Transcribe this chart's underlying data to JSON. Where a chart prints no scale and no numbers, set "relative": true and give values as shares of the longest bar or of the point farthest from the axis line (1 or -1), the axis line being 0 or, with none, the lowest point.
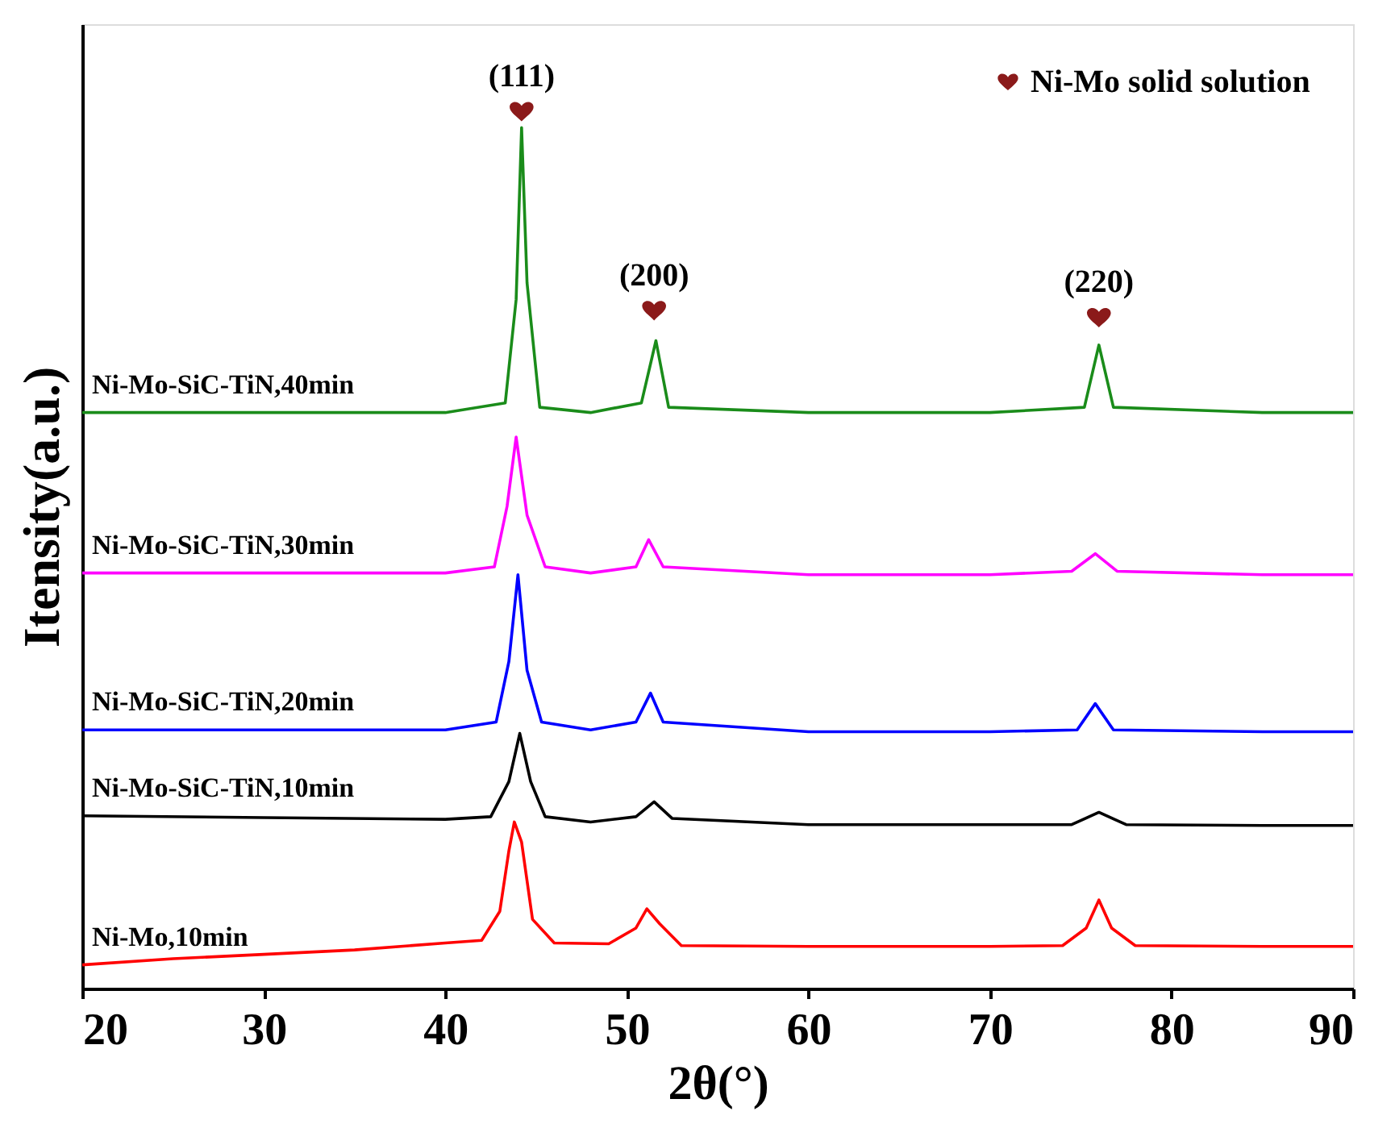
{
  "chart_data": {
    "type": "line",
    "relative": true,
    "xlabel": "2θ(°)",
    "ylabel": "Itensity(a.u.)",
    "xlim": [
      20,
      90
    ],
    "xticks": [
      20,
      30,
      40,
      50,
      60,
      70,
      80,
      90
    ],
    "grid": false,
    "legend": "top right",
    "marker": "none",
    "line_style": "solid",
    "series": [
      {
        "name": "Ni-Mo,10min",
        "color": "#ff0000",
        "x": [
          20,
          25,
          30,
          35,
          40,
          42,
          43,
          43.5,
          43.8,
          44.2,
          44.8,
          46,
          49,
          50.5,
          51.1,
          51.8,
          53,
          60,
          70,
          74,
          75.3,
          76,
          76.7,
          78,
          85,
          90
        ],
        "values": [
          0.027,
          0.034,
          0.039,
          0.044,
          0.052,
          0.055,
          0.088,
          0.157,
          0.19,
          0.167,
          0.079,
          0.052,
          0.051,
          0.069,
          0.091,
          0.074,
          0.049,
          0.048,
          0.048,
          0.049,
          0.069,
          0.101,
          0.069,
          0.049,
          0.048,
          0.048
        ]
      },
      {
        "name": "Ni-Mo-SiC-TiN,10min",
        "color": "#000000",
        "x": [
          20,
          30,
          40,
          42.5,
          43.5,
          44.1,
          44.7,
          45.5,
          48,
          50.5,
          51.5,
          52.5,
          60,
          70,
          74.5,
          76,
          77.5,
          85,
          90
        ],
        "values": [
          0.197,
          0.195,
          0.193,
          0.196,
          0.236,
          0.291,
          0.236,
          0.196,
          0.19,
          0.196,
          0.213,
          0.194,
          0.187,
          0.187,
          0.187,
          0.201,
          0.187,
          0.186,
          0.186
        ]
      },
      {
        "name": "Ni-Mo-SiC-TiN,20min",
        "color": "#0000ff",
        "x": [
          20,
          30,
          40,
          42.8,
          43.5,
          44,
          44.5,
          45.3,
          48,
          50.5,
          51.3,
          52,
          60,
          70,
          74.8,
          75.8,
          76.8,
          85,
          90
        ],
        "values": [
          0.295,
          0.295,
          0.295,
          0.304,
          0.373,
          0.472,
          0.363,
          0.304,
          0.295,
          0.304,
          0.337,
          0.304,
          0.293,
          0.293,
          0.295,
          0.325,
          0.295,
          0.293,
          0.293
        ]
      },
      {
        "name": "Ni-Mo-SiC-TiN,30min",
        "color": "#ff00ff",
        "x": [
          20,
          30,
          40,
          42.7,
          43.4,
          43.9,
          44.5,
          45.5,
          48,
          50.5,
          51.2,
          52,
          60,
          70,
          74.5,
          75.8,
          77,
          85,
          90
        ],
        "values": [
          0.474,
          0.474,
          0.474,
          0.481,
          0.55,
          0.629,
          0.54,
          0.481,
          0.474,
          0.481,
          0.512,
          0.481,
          0.472,
          0.472,
          0.476,
          0.496,
          0.476,
          0.472,
          0.472
        ]
      },
      {
        "name": "Ni-Mo-SiC-TiN,40min",
        "color": "#1a8c1a",
        "x": [
          20,
          30,
          40,
          43.3,
          43.9,
          44.2,
          44.5,
          45.2,
          48,
          50.8,
          51.6,
          52.3,
          60,
          70,
          75.2,
          76,
          76.8,
          85,
          90
        ],
        "values": [
          0.657,
          0.657,
          0.657,
          0.668,
          0.786,
          0.982,
          0.805,
          0.663,
          0.657,
          0.668,
          0.739,
          0.663,
          0.657,
          0.657,
          0.663,
          0.734,
          0.663,
          0.657,
          0.657
        ]
      },
      {
        "name": "Ni-Mo solid solution",
        "type": "scatter",
        "color": "#8b1a1a",
        "x": [
          44.2,
          51.5,
          76
        ],
        "values": [
          1.0,
          0.773,
          0.765
        ]
      }
    ],
    "annotations": [
      "(111)",
      "(200)",
      "(220)"
    ]
  }
}
